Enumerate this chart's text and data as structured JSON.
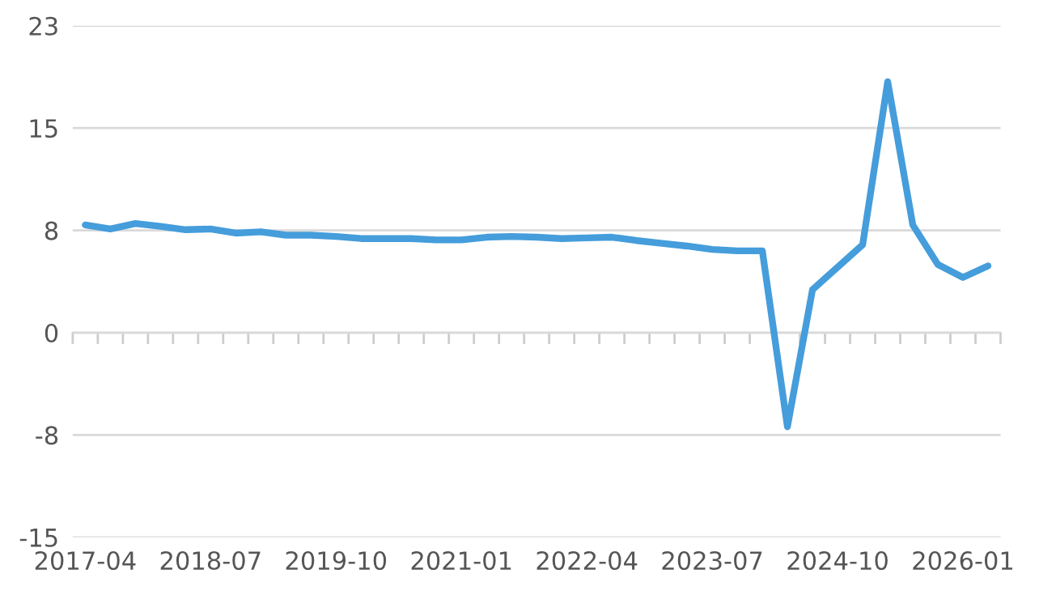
{
  "chart_data": {
    "type": "line",
    "categories": [
      "2017-04",
      null,
      null,
      null,
      null,
      "2018-07",
      null,
      null,
      null,
      null,
      "2019-10",
      null,
      null,
      null,
      null,
      "2021-01",
      null,
      null,
      null,
      null,
      "2022-04",
      null,
      null,
      null,
      null,
      "2023-07",
      null,
      null,
      null,
      null,
      "2024-10",
      null,
      null,
      null,
      null,
      "2026-01",
      null
    ],
    "series": [
      {
        "color": "#459ddb",
        "values": [
          7.9,
          7.6,
          8.0,
          7.8,
          7.55,
          7.6,
          7.3,
          7.4,
          7.15,
          7.15,
          7.05,
          6.9,
          6.9,
          6.9,
          6.8,
          6.8,
          7.0,
          7.05,
          7.0,
          6.9,
          6.95,
          7.0,
          6.75,
          6.55,
          6.35,
          6.1,
          6.0,
          6.0,
          -6.9,
          3.15,
          4.8,
          6.45,
          18.4,
          7.9,
          5.0,
          4.05,
          4.9
        ]
      }
    ],
    "ylim": [
      -15,
      22.5
    ],
    "yticks": [
      {
        "value": -15,
        "label": "-15"
      },
      {
        "value": -7.5,
        "label": "-8"
      },
      0,
      {
        "value": 7.5,
        "label": "8"
      },
      15,
      {
        "value": 22.5,
        "label": "23"
      }
    ],
    "grid": "y",
    "legend": false,
    "marker": "none",
    "line_style": "solid"
  }
}
